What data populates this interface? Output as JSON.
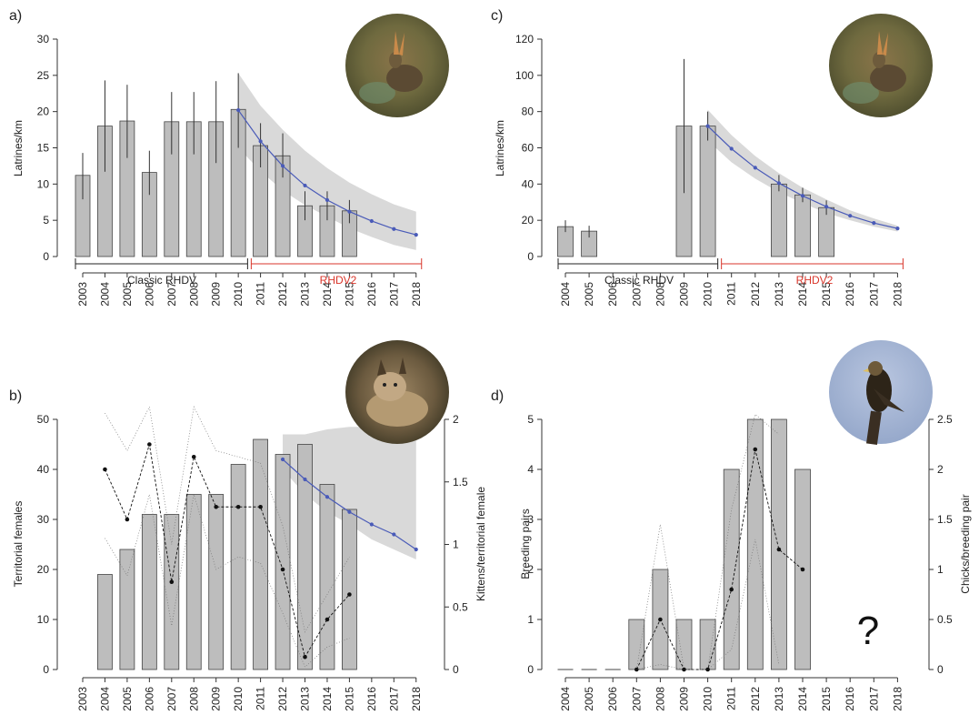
{
  "colors": {
    "bar_fill": "#bdbdbd",
    "bar_stroke": "#444444",
    "trend_line": "#4a5bb8",
    "ci_band": "#d9d9d9",
    "rhdv2_text": "#d9362b",
    "classic_text": "#222222",
    "axis": "#333333",
    "dots": "#111111"
  },
  "photos": [
    {
      "icon": "rabbit-photo-icon"
    },
    {
      "icon": "rabbit-photo-icon"
    },
    {
      "icon": "lynx-photo-icon"
    },
    {
      "icon": "eagle-photo-icon"
    }
  ],
  "chart_data": [
    {
      "panel": "a)",
      "type": "bar",
      "categories": [
        "2003",
        "2004",
        "2005",
        "2006",
        "2007",
        "2008",
        "2009",
        "2010",
        "2011",
        "2012",
        "2013",
        "2014",
        "2015",
        "2016",
        "2017",
        "2018"
      ],
      "values": [
        11.2,
        18.0,
        18.7,
        11.6,
        18.6,
        18.6,
        18.6,
        20.3,
        15.3,
        13.9,
        7.0,
        7.0,
        6.3,
        null,
        null,
        null
      ],
      "err_low": [
        7.9,
        11.7,
        13.6,
        8.5,
        14.1,
        14.1,
        12.9,
        15.0,
        12.3,
        10.9,
        5.0,
        5.0,
        4.6,
        null,
        null,
        null
      ],
      "err_high": [
        14.3,
        24.3,
        23.7,
        14.6,
        22.7,
        22.7,
        24.2,
        25.3,
        18.4,
        17.0,
        9.0,
        9.0,
        7.8,
        null,
        null,
        null
      ],
      "trend": {
        "x": [
          "2010",
          "2011",
          "2012",
          "2013",
          "2014",
          "2015",
          "2016",
          "2017",
          "2018"
        ],
        "values": [
          20.2,
          15.9,
          12.5,
          9.8,
          7.8,
          6.2,
          4.9,
          3.8,
          3.0
        ]
      },
      "band_upper": [
        25.3,
        20.8,
        17.5,
        14.6,
        12.2,
        10.2,
        8.6,
        7.2,
        6.2
      ],
      "band_lower": [
        15.0,
        11.8,
        9.1,
        7.1,
        5.5,
        3.9,
        2.7,
        1.6,
        0.9
      ],
      "ylabel": "Latrines/km",
      "ylim": [
        0,
        30
      ],
      "yticks": [
        "0",
        "5",
        "10",
        "15",
        "20",
        "25",
        "30"
      ],
      "periods": {
        "classic": "Classic RHDV",
        "rhdv2": "RHDV2"
      }
    },
    {
      "panel": "c)",
      "type": "bar",
      "categories": [
        "2004",
        "2005",
        "2006",
        "2007",
        "2008",
        "2009",
        "2010",
        "2011",
        "2012",
        "2013",
        "2014",
        "2015",
        "2016",
        "2017",
        "2018"
      ],
      "values": [
        16.5,
        14.0,
        null,
        null,
        null,
        72.0,
        72.0,
        null,
        null,
        40.0,
        34.0,
        27.0,
        null,
        null,
        null
      ],
      "err_low": [
        13.5,
        10.5,
        null,
        null,
        null,
        35.0,
        64.0,
        null,
        null,
        36.0,
        30.0,
        23.0,
        null,
        null,
        null
      ],
      "err_high": [
        20.0,
        17.0,
        null,
        null,
        null,
        109.0,
        80.0,
        null,
        null,
        45.0,
        38.0,
        31.0,
        null,
        null,
        null
      ],
      "trend": {
        "x": [
          "2010",
          "2011",
          "2012",
          "2013",
          "2014",
          "2015",
          "2016",
          "2017",
          "2018"
        ],
        "values": [
          72.0,
          59.5,
          49.0,
          40.5,
          33.5,
          27.5,
          22.5,
          18.5,
          15.5
        ]
      },
      "band_upper": [
        81.0,
        67.0,
        55.5,
        46.0,
        38.0,
        31.5,
        25.5,
        21.0,
        17.0
      ],
      "band_lower": [
        64.0,
        52.0,
        43.0,
        35.5,
        29.5,
        24.0,
        20.0,
        16.5,
        13.8
      ],
      "ylabel": "Latrines/km",
      "ylim": [
        0,
        120
      ],
      "yticks": [
        "0",
        "20",
        "40",
        "60",
        "80",
        "100",
        "120"
      ],
      "periods": {
        "classic": "Classic RHDV",
        "rhdv2": "RHDV2"
      }
    },
    {
      "panel": "b)",
      "type": "bar",
      "categories": [
        "2003",
        "2004",
        "2005",
        "2006",
        "2007",
        "2008",
        "2009",
        "2010",
        "2011",
        "2012",
        "2013",
        "2014",
        "2015",
        "2016",
        "2017",
        "2018"
      ],
      "values": [
        null,
        19,
        24,
        31,
        31,
        35,
        35,
        41,
        46,
        43,
        45,
        37,
        32,
        null,
        null,
        null
      ],
      "trend": {
        "x": [
          "2012",
          "2013",
          "2014",
          "2015",
          "2016",
          "2017",
          "2018"
        ],
        "values": [
          42.0,
          38.0,
          34.5,
          31.5,
          29.0,
          27.0,
          24.0
        ]
      },
      "band_upper": [
        47.0,
        47.0,
        48.0,
        48.5,
        48.5,
        48.5,
        48.5
      ],
      "band_lower": [
        40.0,
        35.0,
        31.5,
        29.0,
        26.0,
        24.0,
        22.0
      ],
      "dots_right": {
        "x": [
          "2004",
          "2005",
          "2006",
          "2007",
          "2008",
          "2009",
          "2010",
          "2011",
          "2012",
          "2013",
          "2014",
          "2015"
        ],
        "values": [
          1.6,
          1.2,
          1.8,
          0.7,
          1.7,
          1.3,
          1.3,
          1.3,
          0.8,
          0.1,
          0.4,
          0.6
        ]
      },
      "dots_upper": [
        2.05,
        1.75,
        2.1,
        1.0,
        2.1,
        1.75,
        1.7,
        1.65,
        1.15,
        0.3,
        0.6,
        0.9
      ],
      "dots_lower": [
        1.05,
        0.75,
        1.4,
        0.35,
        1.4,
        0.8,
        0.9,
        0.85,
        0.45,
        0.02,
        0.18,
        0.25
      ],
      "ylabel": "Territorial females",
      "ylim": [
        0,
        50
      ],
      "yticks": [
        "0",
        "10",
        "20",
        "30",
        "40",
        "50"
      ],
      "y2label": "Kittens/territorial female",
      "y2lim": [
        0,
        2
      ],
      "y2ticks": [
        "0",
        "0.5",
        "1",
        "1.5",
        "2"
      ]
    },
    {
      "panel": "d)",
      "type": "bar",
      "categories": [
        "2004",
        "2005",
        "2006",
        "2007",
        "2008",
        "2009",
        "2010",
        "2011",
        "2012",
        "2013",
        "2014",
        "2015",
        "2016",
        "2017",
        "2018"
      ],
      "values": [
        0,
        0,
        0,
        1,
        2,
        1,
        1,
        4,
        5,
        5,
        4,
        null,
        null,
        null,
        null
      ],
      "dots_right": {
        "x": [
          "2007",
          "2008",
          "2009",
          "2010",
          "2011",
          "2012",
          "2013",
          "2014"
        ],
        "values": [
          0,
          0.5,
          0,
          0,
          0.8,
          2.2,
          1.2,
          1.0
        ]
      },
      "dots_upper": [
        0,
        1.45,
        0,
        0,
        1.6,
        2.55,
        2.35,
        null
      ],
      "dots_lower": [
        0,
        0.05,
        0,
        0,
        0.2,
        1.3,
        0.05,
        null
      ],
      "ylabel": "Breeding pairs",
      "ylim": [
        0,
        5
      ],
      "yticks": [
        "0",
        "1",
        "2",
        "3",
        "4",
        "5"
      ],
      "y2label": "Chicks/breeding pair",
      "y2lim": [
        0,
        2.5
      ],
      "y2ticks": [
        "0",
        "0.5",
        "1",
        "1.5",
        "2",
        "2.5"
      ],
      "annotation": "?"
    }
  ]
}
